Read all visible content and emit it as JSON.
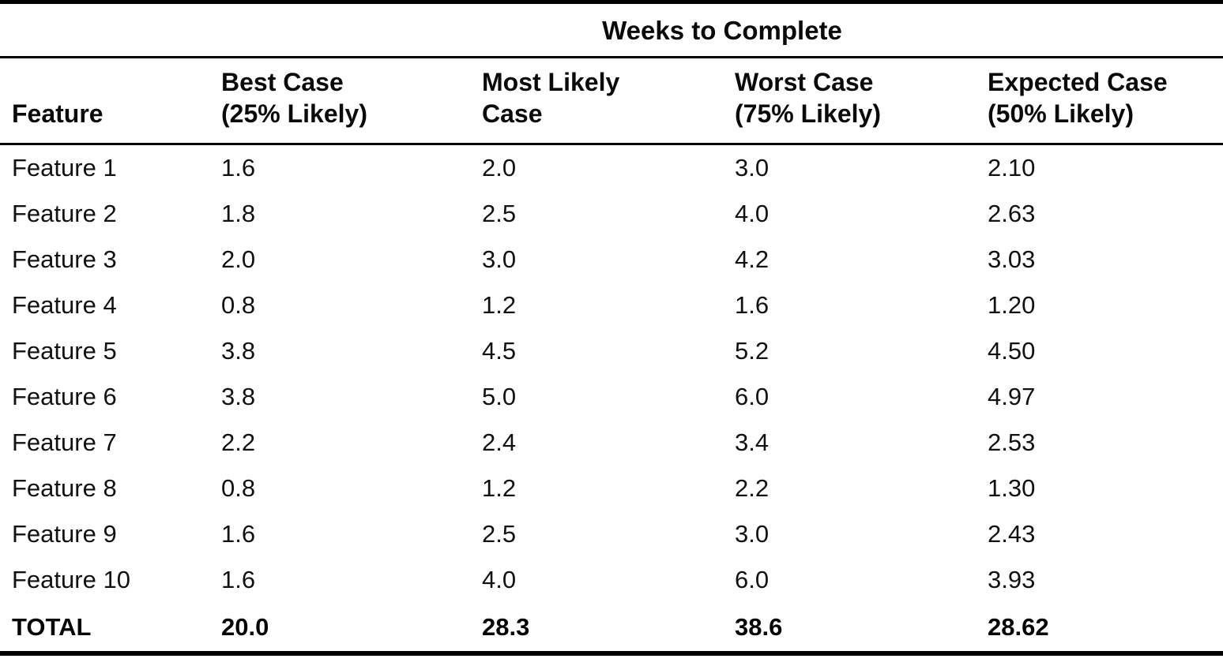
{
  "table": {
    "span_header": "Weeks to Complete",
    "headers": {
      "feature": "Feature",
      "best": "Best Case\n(25% Likely)",
      "most_likely": "Most Likely\nCase",
      "worst": "Worst Case\n(75% Likely)",
      "expected": "Expected Case\n(50% Likely)"
    },
    "rows": [
      {
        "feature": "Feature 1",
        "values": [
          "1.6",
          "2.0",
          "3.0",
          "2.10"
        ]
      },
      {
        "feature": "Feature 2",
        "values": [
          "1.8",
          "2.5",
          "4.0",
          "2.63"
        ]
      },
      {
        "feature": "Feature 3",
        "values": [
          "2.0",
          "3.0",
          "4.2",
          "3.03"
        ]
      },
      {
        "feature": "Feature 4",
        "values": [
          "0.8",
          "1.2",
          "1.6",
          "1.20"
        ]
      },
      {
        "feature": "Feature 5",
        "values": [
          "3.8",
          "4.5",
          "5.2",
          "4.50"
        ]
      },
      {
        "feature": "Feature 6",
        "values": [
          "3.8",
          "5.0",
          "6.0",
          "4.97"
        ]
      },
      {
        "feature": "Feature 7",
        "values": [
          "2.2",
          "2.4",
          "3.4",
          "2.53"
        ]
      },
      {
        "feature": "Feature 8",
        "values": [
          "0.8",
          "1.2",
          "2.2",
          "1.30"
        ]
      },
      {
        "feature": "Feature 9",
        "values": [
          "1.6",
          "2.5",
          "3.0",
          "2.43"
        ]
      },
      {
        "feature": "Feature 10",
        "values": [
          "1.6",
          "4.0",
          "6.0",
          "3.93"
        ]
      }
    ],
    "total": {
      "label": "TOTAL",
      "values": [
        "20.0",
        "28.3",
        "38.6",
        "28.62"
      ]
    }
  },
  "colors": {
    "text": "#0d0d0d",
    "background": "#ffffff",
    "rule": "#000000"
  }
}
